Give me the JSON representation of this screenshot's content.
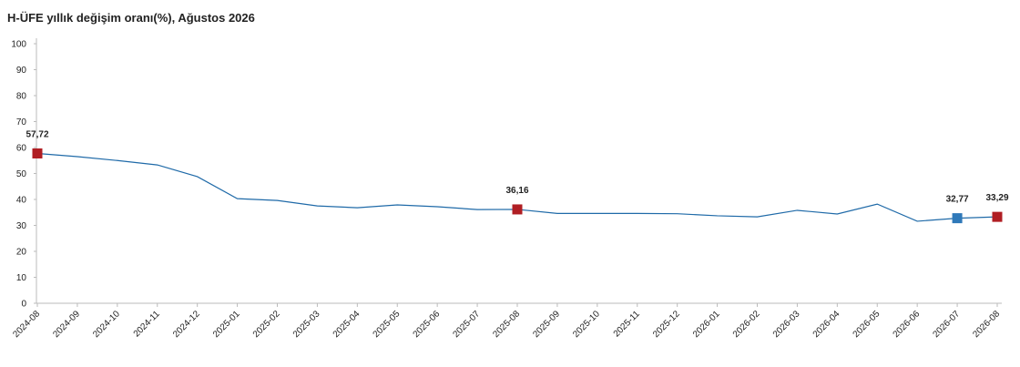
{
  "chart_data": {
    "type": "line",
    "title": "H-ÜFE yıllık değişim oranı(%), Ağustos 2026",
    "categories": [
      "2024-08",
      "2024-09",
      "2024-10",
      "2024-11",
      "2024-12",
      "2025-01",
      "2025-02",
      "2025-03",
      "2025-04",
      "2025-05",
      "2025-06",
      "2025-07",
      "2025-08",
      "2025-09",
      "2025-10",
      "2025-11",
      "2025-12",
      "2026-01",
      "2026-02",
      "2026-03",
      "2026-04",
      "2026-05",
      "2026-06",
      "2026-07",
      "2026-08"
    ],
    "values": [
      57.72,
      56.5,
      55.0,
      53.3,
      48.8,
      40.3,
      39.6,
      37.5,
      36.8,
      37.9,
      37.2,
      36.1,
      36.16,
      34.6,
      34.6,
      34.6,
      34.5,
      33.7,
      33.3,
      35.8,
      34.4,
      38.2,
      31.6,
      32.77,
      33.29
    ],
    "value_labels": [
      "57,72",
      null,
      null,
      null,
      null,
      null,
      null,
      null,
      null,
      null,
      null,
      null,
      "36,16",
      null,
      null,
      null,
      null,
      null,
      null,
      null,
      null,
      null,
      null,
      "32,77",
      "33,29"
    ],
    "marker_colors": [
      "#b01e23",
      null,
      null,
      null,
      null,
      null,
      null,
      null,
      null,
      null,
      null,
      null,
      "#b01e23",
      null,
      null,
      null,
      null,
      null,
      null,
      null,
      null,
      null,
      null,
      "#2f79b9",
      "#b01e23"
    ],
    "color": "#1f6aa8",
    "ylim": [
      0,
      100
    ],
    "yticks": [
      0,
      10,
      20,
      30,
      40,
      50,
      60,
      70,
      80,
      90,
      100
    ]
  }
}
